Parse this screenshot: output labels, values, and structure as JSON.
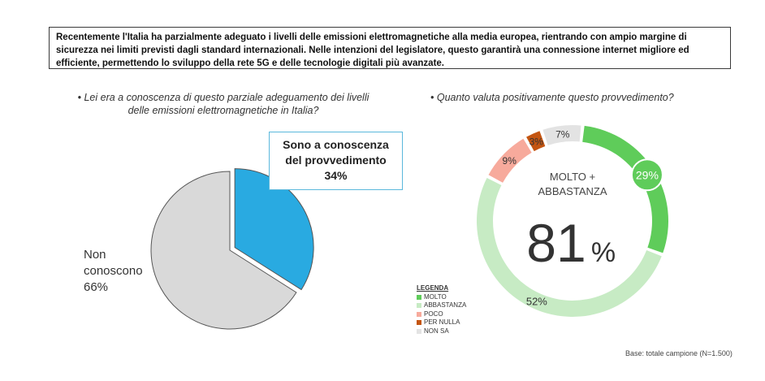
{
  "intro_text": "Recentemente l'Italia ha parzialmente adeguato i livelli delle emissioni elettromagnetiche alla media europea, rientrando con ampio margine di sicurezza nei limiti previsti dagli standard internazionali.  Nelle intenzioni del legislatore, questo garantirà una connessione internet migliore ed efficiente, permettendo lo sviluppo della rete 5G e delle tecnologie digitali più avanzate.",
  "base_text": "Base: totale campione (N=1.500)",
  "chart_data": [
    {
      "type": "pie",
      "title": "• Lei era a conoscenza di questo parziale adeguamento dei livelli delle emissioni elettromagnetiche in Italia?",
      "slices": [
        {
          "label_line1": "Sono a conoscenza",
          "label_line2": "del provvedimento",
          "value": 34,
          "value_label": "34%",
          "color": "#29aae1"
        },
        {
          "label_line1": "Non",
          "label_line2": "conoscono",
          "value": 66,
          "value_label": "66%",
          "color": "#d9d9d9"
        }
      ]
    },
    {
      "type": "pie",
      "subtype": "donut",
      "title": "• Quanto valuta positivamente questo provvedimento?",
      "center_label_line1": "MOLTO +",
      "center_label_line2": "ABBASTANZA",
      "center_value": "81",
      "center_unit": "%",
      "legend_title": "LEGENDA",
      "slices": [
        {
          "name": "MOLTO",
          "value": 29,
          "value_label": "29%",
          "color": "#5fcc5a"
        },
        {
          "name": "ABBASTANZA",
          "value": 52,
          "value_label": "52%",
          "color": "#c7ebc4"
        },
        {
          "name": "POCO",
          "value": 9,
          "value_label": "9%",
          "color": "#f7aa9c"
        },
        {
          "name": "PER NULLA",
          "value": 3,
          "value_label": "3%",
          "color": "#c45511"
        },
        {
          "name": "NON SA",
          "value": 7,
          "value_label": "7%",
          "color": "#e3e3e3"
        }
      ]
    }
  ]
}
